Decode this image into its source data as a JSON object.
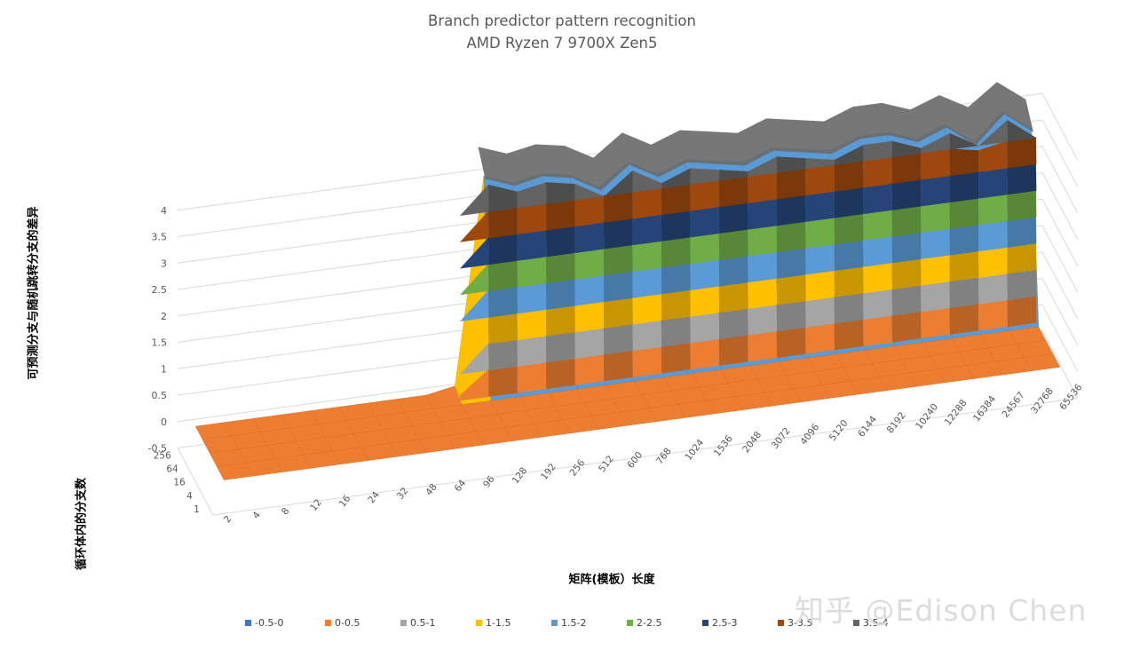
{
  "chart_data": {
    "type": "surface",
    "title": "Branch predictor pattern recognition",
    "subtitle": "AMD Ryzen 7 9700X Zen5",
    "xlabel": "矩阵(模板）长度",
    "ylabel": "可预测分支与随机跳转分支的差异",
    "zlabel": "循环体内的分支数",
    "x_categories": [
      "2",
      "4",
      "8",
      "12",
      "16",
      "24",
      "32",
      "48",
      "64",
      "96",
      "128",
      "192",
      "256",
      "512",
      "600",
      "768",
      "1024",
      "1536",
      "2048",
      "3072",
      "4096",
      "5120",
      "6144",
      "8192",
      "10240",
      "12288",
      "16384",
      "24567",
      "32768",
      "65536"
    ],
    "z_categories": [
      "1",
      "4",
      "16",
      "64",
      "256"
    ],
    "y_ticks": [
      "-0.5",
      "0",
      "0.5",
      "1",
      "1.5",
      "2",
      "2.5",
      "3",
      "3.5",
      "4"
    ],
    "ylim": [
      -0.5,
      4
    ],
    "series": [
      {
        "z": "1",
        "values": [
          0,
          0,
          0,
          0,
          0,
          0,
          0,
          0,
          0,
          0,
          0,
          0,
          0,
          0,
          0,
          0,
          0,
          0,
          0,
          0,
          0,
          0,
          0,
          0,
          0,
          0,
          0,
          0,
          0,
          0
        ]
      },
      {
        "z": "4",
        "values": [
          0,
          0,
          0,
          0,
          0,
          0,
          0,
          0,
          0,
          0,
          0,
          0,
          0,
          0,
          0,
          0,
          0,
          0,
          0,
          0,
          0,
          0,
          0,
          0,
          0,
          0,
          0,
          0,
          0,
          0
        ]
      },
      {
        "z": "16",
        "values": [
          0,
          0,
          0,
          0,
          0,
          0,
          0,
          0,
          0,
          0,
          0,
          0,
          0,
          0,
          0,
          0,
          0,
          0,
          0,
          0,
          0,
          0,
          0,
          0,
          0,
          0,
          0,
          0,
          0,
          0
        ]
      },
      {
        "z": "64",
        "values": [
          0,
          0,
          0,
          0,
          0,
          0,
          0,
          0,
          0,
          0,
          0,
          0,
          0,
          0,
          0,
          0,
          0,
          0,
          0,
          0,
          0,
          0,
          0,
          0,
          0,
          0,
          0,
          0,
          0,
          0
        ]
      },
      {
        "z": "256",
        "values": [
          0,
          0,
          0,
          0,
          0,
          0,
          0,
          0,
          0,
          0.1,
          4.0,
          3.8,
          3.9,
          3.8,
          3.5,
          3.9,
          3.6,
          3.8,
          3.7,
          3.6,
          3.8,
          3.7,
          3.6,
          3.8,
          3.8,
          3.6,
          3.8,
          3.4,
          3.9,
          3.5
        ]
      }
    ],
    "legend": [
      {
        "label": "-0.5-0",
        "color": "#4472c4"
      },
      {
        "label": "0-0.5",
        "color": "#ed7d31"
      },
      {
        "label": "0.5-1",
        "color": "#a5a5a5"
      },
      {
        "label": "1-1.5",
        "color": "#ffc000"
      },
      {
        "label": "1.5-2",
        "color": "#5b9bd5"
      },
      {
        "label": "2-2.5",
        "color": "#70ad47"
      },
      {
        "label": "2.5-3",
        "color": "#264478"
      },
      {
        "label": "3-3.5",
        "color": "#9e480e"
      },
      {
        "label": "3.5-4",
        "color": "#636363"
      }
    ],
    "legend_position": "bottom",
    "grid": true
  },
  "watermark": "知乎 @Edison Chen"
}
